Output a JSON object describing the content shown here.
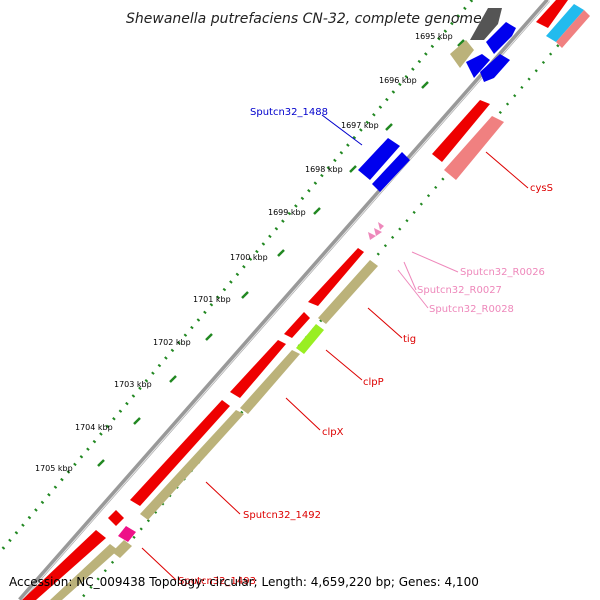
{
  "title": "Shewanella putrefaciens CN-32, complete genome",
  "footer": {
    "accession": "Accession: NC_009438",
    "topology": "Topology: circular; Length: 4,659,220 bp; Genes: 4,100"
  },
  "ticks": [
    {
      "label": "1695 kbp"
    },
    {
      "label": "1696 kbp"
    },
    {
      "label": "1697 kbp"
    },
    {
      "label": "1698 kbp"
    },
    {
      "label": "1699 kbp"
    },
    {
      "label": "1700 kbp"
    },
    {
      "label": "1701 kbp"
    },
    {
      "label": "1702 kbp"
    },
    {
      "label": "1703 kbp"
    },
    {
      "label": "1704 kbp"
    },
    {
      "label": "1705 kbp"
    }
  ],
  "gene_labels": [
    {
      "text": "Sputcn32_1488",
      "color": "#0000cc"
    },
    {
      "text": "cysS",
      "color": "#dd0000"
    },
    {
      "text": "Sputcn32_R0026",
      "color": "#ee88bb"
    },
    {
      "text": "Sputcn32_R0027",
      "color": "#ee88bb"
    },
    {
      "text": "Sputcn32_R0028",
      "color": "#ee88bb"
    },
    {
      "text": "tig",
      "color": "#dd0000"
    },
    {
      "text": "clpP",
      "color": "#dd0000"
    },
    {
      "text": "clpX",
      "color": "#dd0000"
    },
    {
      "text": "Sputcn32_1492",
      "color": "#dd0000"
    },
    {
      "text": "Sputcn32_1493",
      "color": "#dd0000"
    }
  ],
  "colors": {
    "cds": "#ee0000",
    "cds_light": "#f08080",
    "gene": "#bbb27a",
    "blue": "#0000ee",
    "pink_rna": "#ee88bb",
    "magenta": "#ee1188",
    "lime": "#99ee22",
    "grey": "#555555",
    "cyan": "#22bbee",
    "tick": "#228822",
    "backbone": "#999999"
  }
}
